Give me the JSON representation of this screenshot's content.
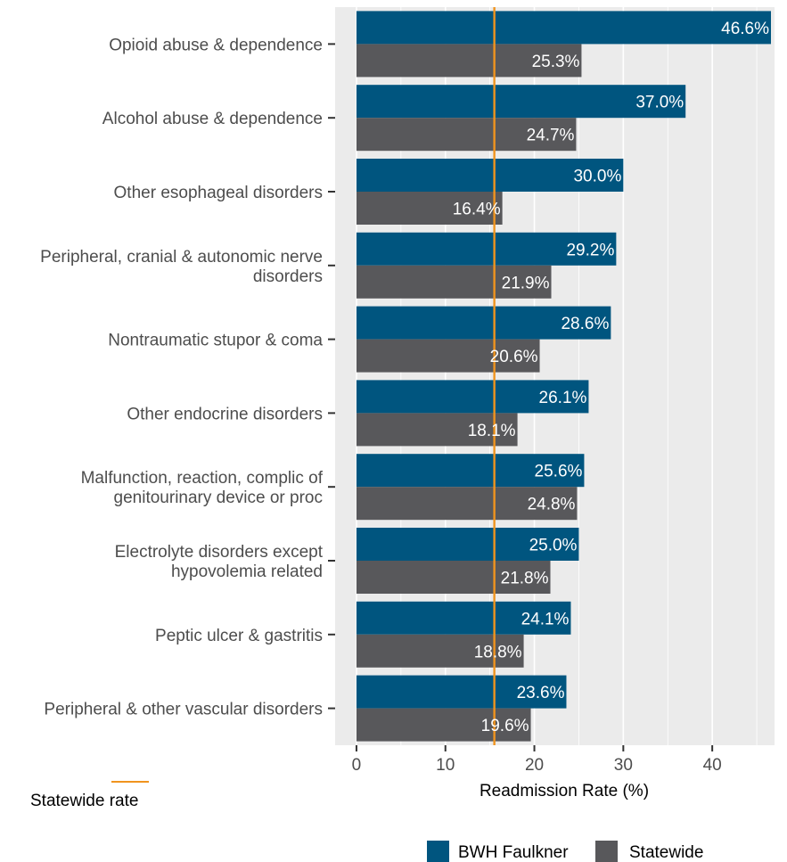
{
  "chart_data": {
    "type": "bar",
    "orientation": "horizontal",
    "categories": [
      "Opioid abuse & dependence",
      "Alcohol abuse & dependence",
      "Other esophageal disorders",
      "Peripheral, cranial & autonomic nerve disorders",
      "Nontraumatic stupor & coma",
      "Other endocrine disorders",
      "Malfunction, reaction, complic of genitourinary device or proc",
      "Electrolyte disorders except hypovolemia related",
      "Peptic ulcer & gastritis",
      "Peripheral & other vascular disorders"
    ],
    "category_lines": [
      [
        "Opioid abuse & dependence"
      ],
      [
        "Alcohol abuse & dependence"
      ],
      [
        "Other esophageal disorders"
      ],
      [
        "Peripheral, cranial & autonomic nerve",
        "disorders"
      ],
      [
        "Nontraumatic stupor & coma"
      ],
      [
        "Other endocrine disorders"
      ],
      [
        "Malfunction, reaction, complic of",
        "genitourinary device or proc"
      ],
      [
        "Electrolyte disorders except",
        "hypovolemia related"
      ],
      [
        "Peptic ulcer & gastritis"
      ],
      [
        "Peripheral & other vascular disorders"
      ]
    ],
    "series": [
      {
        "name": "BWH Faulkner",
        "color": "#00557f",
        "values": [
          46.6,
          37.0,
          30.0,
          29.2,
          28.6,
          26.1,
          25.6,
          25.0,
          24.1,
          23.6
        ],
        "labels": [
          "46.6%",
          "37.0%",
          "30.0%",
          "29.2%",
          "28.6%",
          "26.1%",
          "25.6%",
          "25.0%",
          "24.1%",
          "23.6%"
        ]
      },
      {
        "name": "Statewide",
        "color": "#58585b",
        "values": [
          25.3,
          24.7,
          16.4,
          21.9,
          20.6,
          18.1,
          24.8,
          21.8,
          18.8,
          19.6
        ],
        "labels": [
          "25.3%",
          "24.7%",
          "16.4%",
          "21.9%",
          "20.6%",
          "18.1%",
          "24.8%",
          "21.8%",
          "18.8%",
          "19.6%"
        ]
      }
    ],
    "reference_line": {
      "name": "Statewide rate",
      "value": 15.5,
      "color": "#f0941e"
    },
    "xlabel": "Readmission Rate (%)",
    "ylabel": "",
    "title": "",
    "xlim": [
      -2.4,
      47.0
    ],
    "xticks": [
      0,
      10,
      20,
      30,
      40
    ],
    "grid": true,
    "panel_color": "#ebebeb",
    "legend_position": "bottom"
  }
}
